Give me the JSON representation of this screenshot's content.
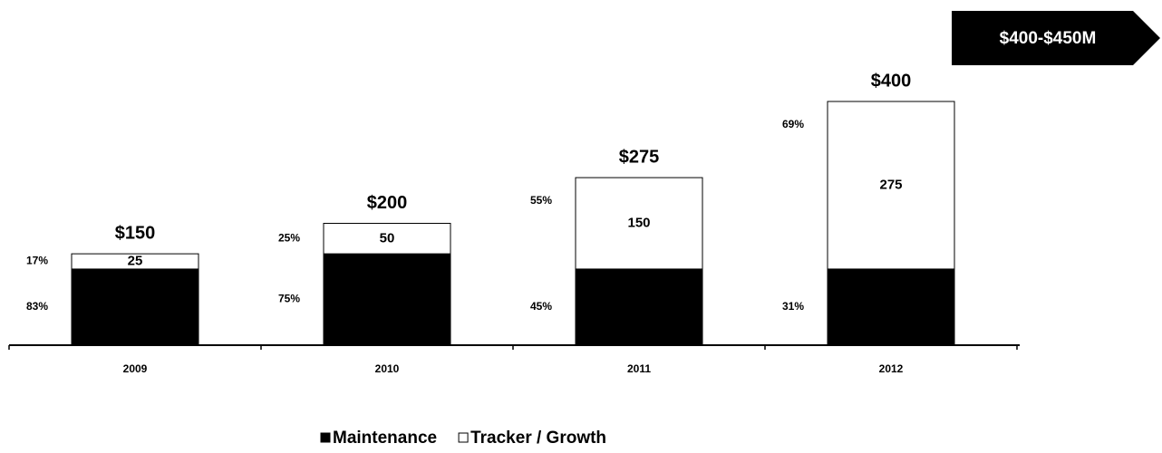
{
  "chart_data": {
    "type": "stacked_bar",
    "annotation": "$400-$450M",
    "categories": [
      "2009",
      "2010",
      "2011",
      "2012"
    ],
    "ylim": [
      0,
      400
    ],
    "series": [
      {
        "name": "Maintenance",
        "color": "#000000",
        "values": [
          125,
          150,
          125,
          125
        ],
        "shares": [
          83,
          75,
          45,
          31
        ],
        "share_labels": [
          "83%",
          "75%",
          "45%",
          "31%"
        ]
      },
      {
        "name": "Tracker / Growth",
        "color": "#ffffff",
        "values": [
          25,
          50,
          150,
          275
        ],
        "shares": [
          17,
          25,
          55,
          69
        ],
        "share_labels": [
          "17%",
          "25%",
          "55%",
          "69%"
        ]
      }
    ],
    "totals": [
      150,
      200,
      275,
      400
    ],
    "total_labels": [
      "$150",
      "$200",
      "$275",
      "$400"
    ],
    "legend": "bottom"
  }
}
